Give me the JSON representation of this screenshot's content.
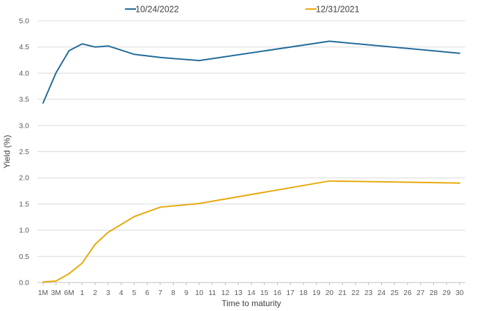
{
  "chart_data": {
    "type": "line",
    "xlabel": "Time to maturity",
    "ylabel": "Yield (%)",
    "ylim": [
      0,
      5
    ],
    "yticks": [
      "0.0",
      "0.5",
      "1.0",
      "1.5",
      "2.0",
      "2.5",
      "3.0",
      "3.5",
      "4.0",
      "4.5",
      "5.0"
    ],
    "categories": [
      "1M",
      "3M",
      "6M",
      "1",
      "2",
      "3",
      "4",
      "5",
      "6",
      "7",
      "8",
      "9",
      "10",
      "11",
      "12",
      "13",
      "14",
      "15",
      "16",
      "17",
      "18",
      "19",
      "20",
      "21",
      "22",
      "23",
      "24",
      "25",
      "26",
      "27",
      "28",
      "29",
      "30"
    ],
    "grid": "horizontal",
    "legend": "top-center",
    "series": [
      {
        "name": "10/24/2022",
        "color": "#1f6a9a",
        "points": [
          {
            "x": "1M",
            "y": 3.43
          },
          {
            "x": "3M",
            "y": 4.01
          },
          {
            "x": "6M",
            "y": 4.43
          },
          {
            "x": "1",
            "y": 4.56
          },
          {
            "x": "2",
            "y": 4.5
          },
          {
            "x": "3",
            "y": 4.52
          },
          {
            "x": "5",
            "y": 4.36
          },
          {
            "x": "7",
            "y": 4.3
          },
          {
            "x": "10",
            "y": 4.24
          },
          {
            "x": "20",
            "y": 4.61
          },
          {
            "x": "30",
            "y": 4.38
          }
        ]
      },
      {
        "name": "12/31/2021",
        "color": "#e8a80c",
        "points": [
          {
            "x": "1M",
            "y": 0.01
          },
          {
            "x": "3M",
            "y": 0.03
          },
          {
            "x": "6M",
            "y": 0.17
          },
          {
            "x": "1",
            "y": 0.37
          },
          {
            "x": "2",
            "y": 0.73
          },
          {
            "x": "3",
            "y": 0.96
          },
          {
            "x": "5",
            "y": 1.26
          },
          {
            "x": "7",
            "y": 1.44
          },
          {
            "x": "10",
            "y": 1.51
          },
          {
            "x": "20",
            "y": 1.94
          },
          {
            "x": "30",
            "y": 1.9
          }
        ]
      }
    ]
  }
}
